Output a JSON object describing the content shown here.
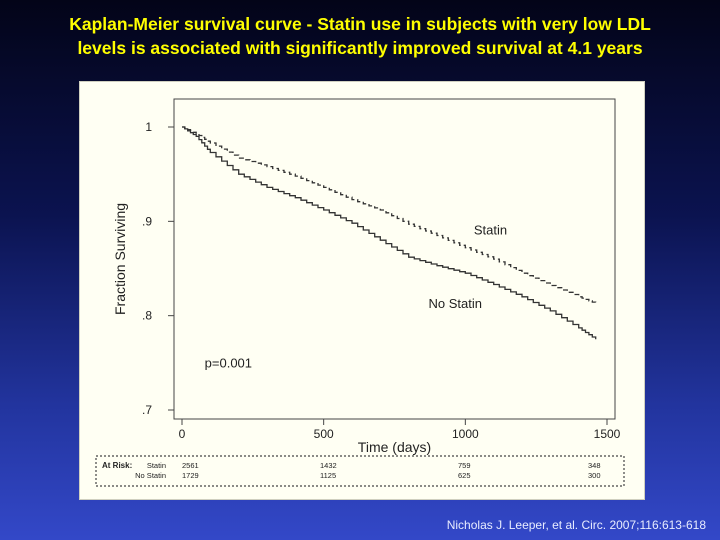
{
  "slide": {
    "title_line1": "Kaplan-Meier survival curve -  Statin use in subjects with very low LDL",
    "title_line2": "levels is associated with significantly improved survival at 4.1 years",
    "citation": "Nicholas J. Leeper, et al. Circ. 2007;116:613-618"
  },
  "colors": {
    "title": "#ffff00",
    "panel_background": "#fffff3",
    "curve": "#333333"
  },
  "chart_data": {
    "type": "line",
    "title": "",
    "xlabel": "Time (days)",
    "ylabel": "Fraction Surviving",
    "xlim": [
      0,
      1500
    ],
    "ylim": [
      0.7,
      1.0
    ],
    "xticks": [
      0,
      500,
      1000,
      1500
    ],
    "xtick_labels": [
      "0",
      "500",
      "1000",
      "1500"
    ],
    "yticks": [
      1.0,
      0.9,
      0.8,
      0.7
    ],
    "ytick_labels": [
      "1",
      ".9",
      ".8",
      ".7"
    ],
    "grid": false,
    "annotation": "p=0.001",
    "series": [
      {
        "name": "Statin",
        "style": "dashed",
        "x": [
          0,
          50,
          100,
          200,
          300,
          400,
          500,
          600,
          700,
          800,
          900,
          1000,
          1100,
          1200,
          1300,
          1400,
          1460
        ],
        "y": [
          1.0,
          0.993,
          0.983,
          0.967,
          0.958,
          0.948,
          0.936,
          0.923,
          0.912,
          0.897,
          0.885,
          0.872,
          0.86,
          0.845,
          0.832,
          0.82,
          0.813
        ]
      },
      {
        "name": "No Statin",
        "style": "solid",
        "x": [
          0,
          50,
          100,
          200,
          300,
          400,
          500,
          600,
          700,
          800,
          900,
          1000,
          1100,
          1200,
          1300,
          1400,
          1460
        ],
        "y": [
          1.0,
          0.99,
          0.973,
          0.95,
          0.936,
          0.925,
          0.912,
          0.898,
          0.88,
          0.862,
          0.853,
          0.845,
          0.833,
          0.82,
          0.805,
          0.787,
          0.775
        ]
      }
    ],
    "at_risk": {
      "label": "At Risk:",
      "rows": [
        {
          "name": "Statin",
          "counts": [
            "2561",
            "1432",
            "759",
            "348"
          ]
        },
        {
          "name": "No Statin",
          "counts": [
            "1729",
            "1125",
            "625",
            "300"
          ]
        }
      ]
    }
  }
}
